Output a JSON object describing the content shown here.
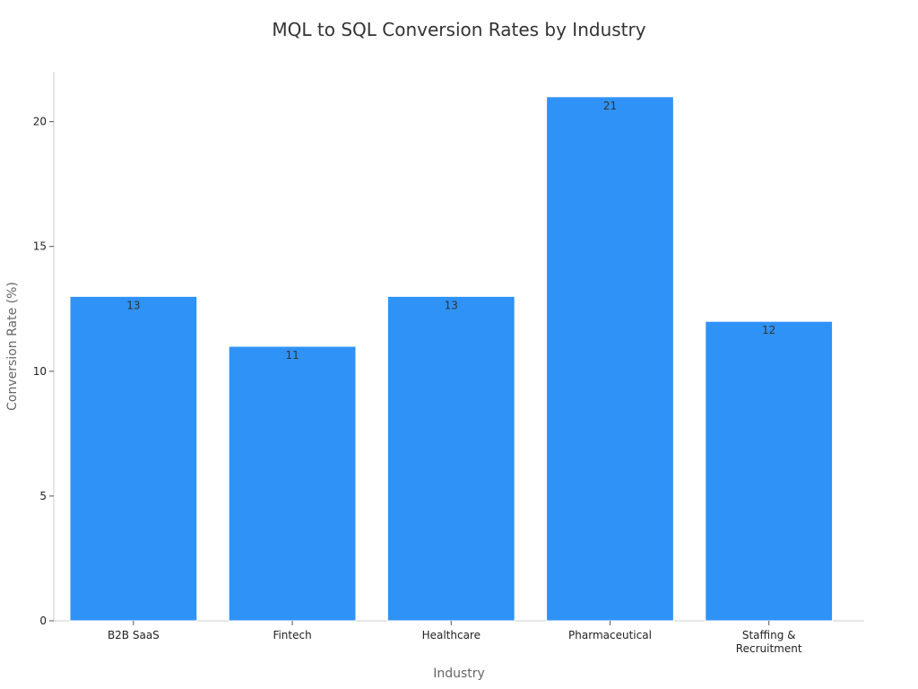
{
  "chart_data": {
    "type": "bar",
    "title": "MQL to SQL Conversion Rates by Industry",
    "xlabel": "Industry",
    "ylabel": "Conversion Rate (%)",
    "categories": [
      "B2B SaaS",
      "Fintech",
      "Healthcare",
      "Pharmaceutical",
      "Staffing & Recruitment"
    ],
    "category_lines": [
      [
        "B2B SaaS"
      ],
      [
        "Fintech"
      ],
      [
        "Healthcare"
      ],
      [
        "Pharmaceutical"
      ],
      [
        "Staffing &",
        "Recruitment"
      ]
    ],
    "values": [
      13,
      11,
      13,
      21,
      12
    ],
    "ylim": [
      0,
      22
    ],
    "yticks": [
      0,
      5,
      10,
      15,
      20
    ],
    "bar_color": "#2f92f7",
    "grid": false,
    "legend": "none"
  }
}
